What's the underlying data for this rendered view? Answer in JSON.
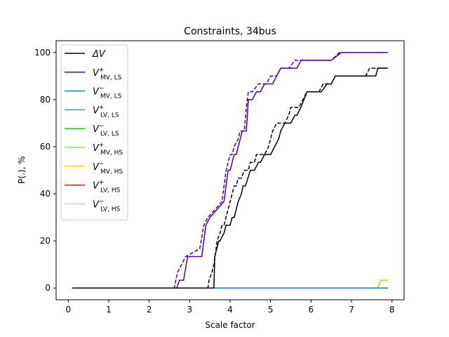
{
  "chart_data": {
    "type": "line",
    "title": "Constraints, 34bus",
    "xlabel": "Scale factor",
    "ylabel": "P(.), %",
    "xlim": [
      -0.3,
      8.3
    ],
    "ylim": [
      -5,
      105
    ],
    "xticks": [
      0,
      1,
      2,
      3,
      4,
      5,
      6,
      7,
      8
    ],
    "yticks": [
      0,
      20,
      40,
      60,
      80,
      100
    ],
    "legend_position": "upper left",
    "note": "solid and dashed variants are drawn per series",
    "series": [
      {
        "id": "dv",
        "color": "#000000",
        "legend": {
          "base": "ΔV",
          "sup": "",
          "sub": ""
        },
        "solid_x": [
          0.1,
          3.6,
          3.62,
          3.72,
          3.75,
          3.85,
          3.9,
          3.95,
          4.0,
          4.05,
          4.1,
          4.15,
          4.2,
          4.28,
          4.32,
          4.38,
          4.5,
          4.55,
          4.6,
          4.7,
          4.75,
          4.85,
          4.95,
          5.0,
          5.1,
          5.2,
          5.25,
          5.35,
          5.45,
          5.5,
          5.6,
          5.65,
          5.75,
          5.9,
          6.2,
          6.25,
          6.4,
          6.5,
          6.6,
          6.9,
          7.6,
          7.65,
          7.9
        ],
        "solid_y": [
          0,
          0,
          13.33,
          20,
          20,
          23.33,
          26.67,
          26.67,
          26.67,
          30,
          30,
          33.33,
          36.67,
          40,
          43.33,
          43.33,
          50,
          50,
          50,
          53.33,
          53.33,
          56.67,
          56.67,
          56.67,
          60,
          63.33,
          66.67,
          70,
          70,
          70,
          73.33,
          73.33,
          76.67,
          83.33,
          83.33,
          83.33,
          86.67,
          86.67,
          90,
          90,
          90,
          93.33,
          93.33
        ],
        "dashed_x": [
          0.1,
          3.45,
          3.48,
          3.55,
          3.6,
          3.68,
          3.75,
          3.8,
          3.85,
          3.9,
          4.0,
          4.05,
          4.1,
          4.15,
          4.2,
          4.28,
          4.35,
          4.45,
          4.5,
          4.6,
          4.65,
          4.75,
          4.85,
          4.95,
          5.0,
          5.05,
          5.15,
          5.25,
          5.35,
          5.45,
          5.5,
          5.6,
          5.7,
          5.8,
          5.9,
          6.2,
          6.3,
          6.5,
          6.6,
          7.35,
          7.45,
          7.5,
          7.9
        ],
        "dashed_y": [
          0,
          0,
          3.33,
          6.67,
          10,
          20,
          23.33,
          26.67,
          26.67,
          30,
          36.67,
          40,
          43.33,
          43.33,
          46.67,
          46.67,
          50,
          50,
          53.33,
          53.33,
          56.67,
          56.67,
          56.67,
          60,
          63.33,
          66.67,
          70,
          70,
          70,
          73.33,
          76.67,
          76.67,
          76.67,
          80,
          83.33,
          83.33,
          86.67,
          86.67,
          90,
          90,
          93.33,
          93.33,
          93.33
        ]
      },
      {
        "id": "mv_ls_plus",
        "color": "#4b0099",
        "legend": {
          "base": "V",
          "sup": "+",
          "sub": "MV, LS"
        },
        "solid_x": [
          0.1,
          2.68,
          2.75,
          2.85,
          2.95,
          3.3,
          3.4,
          3.5,
          3.85,
          3.95,
          4.0,
          4.1,
          4.15,
          4.25,
          4.3,
          4.4,
          4.45,
          4.55,
          4.65,
          4.75,
          4.85,
          5.05,
          5.15,
          5.25,
          5.55,
          5.65,
          5.75,
          6.4,
          6.5,
          6.75,
          7.9
        ],
        "solid_y": [
          0,
          0,
          3.33,
          3.33,
          13.33,
          13.33,
          26.67,
          30,
          36.67,
          50,
          50,
          56.67,
          56.67,
          63.33,
          66.67,
          66.67,
          80,
          80,
          83.33,
          83.33,
          86.67,
          86.67,
          90,
          93.33,
          93.33,
          93.33,
          96.67,
          96.67,
          96.67,
          100,
          100
        ],
        "dashed_x": [
          0.1,
          2.62,
          2.7,
          2.8,
          2.9,
          3.25,
          3.35,
          3.45,
          3.8,
          3.9,
          4.0,
          4.05,
          4.1,
          4.2,
          4.25,
          4.35,
          4.4,
          4.45,
          4.55,
          4.7,
          4.8,
          4.9,
          5.0,
          5.15,
          5.25,
          5.45,
          5.6,
          6.5,
          6.7,
          7.9
        ],
        "dashed_y": [
          0,
          0,
          6.67,
          10,
          13.33,
          16.67,
          26.67,
          30,
          36.67,
          50,
          56.67,
          56.67,
          60,
          63.33,
          66.67,
          66.67,
          76.67,
          83.33,
          83.33,
          86.67,
          86.67,
          86.67,
          90,
          90,
          93.33,
          93.33,
          96.67,
          96.67,
          100,
          100
        ]
      },
      {
        "id": "mv_ls_minus",
        "color": "#1f77b4",
        "legend": {
          "base": "V",
          "sup": "−",
          "sub": "MV, LS"
        },
        "solid_x": [
          0.1,
          7.9
        ],
        "solid_y": [
          0,
          0
        ],
        "dashed_x": [
          0.1,
          7.9
        ],
        "dashed_y": [
          0,
          0
        ]
      },
      {
        "id": "lv_ls_plus",
        "color": "#1aaa99",
        "legend": {
          "base": "V",
          "sup": "+",
          "sub": "LV, LS"
        },
        "solid_x": [
          0.1,
          7.9
        ],
        "solid_y": [
          0,
          0
        ],
        "dashed_x": [
          0.1,
          7.9
        ],
        "dashed_y": [
          0,
          0
        ]
      },
      {
        "id": "lv_ls_minus",
        "color": "#1ec01e",
        "legend": {
          "base": "V",
          "sup": "−",
          "sub": "LV, LS"
        },
        "solid_x": [
          0.1,
          7.9
        ],
        "solid_y": [
          0,
          0
        ],
        "dashed_x": [
          0.1,
          7.9
        ],
        "dashed_y": [
          0,
          0
        ]
      },
      {
        "id": "mv_hs_plus",
        "color": "#7fff00",
        "legend": {
          "base": "V",
          "sup": "+",
          "sub": "MV, HS"
        },
        "solid_x": [
          0.1,
          7.65,
          7.72,
          7.9
        ],
        "solid_y": [
          0,
          0,
          3.33,
          3.33
        ],
        "dashed_x": [
          0.1,
          7.55,
          7.62,
          7.9
        ],
        "dashed_y": [
          0,
          0,
          0,
          0
        ]
      },
      {
        "id": "mv_hs_minus",
        "color": "#ffcc00",
        "legend": {
          "base": "V",
          "sup": "−",
          "sub": "MV, HS"
        },
        "solid_x": [
          0.1,
          7.9
        ],
        "solid_y": [
          0,
          0
        ],
        "dashed_x": [
          0.1,
          7.9
        ],
        "dashed_y": [
          0,
          0
        ]
      },
      {
        "id": "lv_hs_plus",
        "color": "#dd1111",
        "legend": {
          "base": "V",
          "sup": "+",
          "sub": "LV, HS"
        },
        "solid_x": [
          0.1,
          7.9
        ],
        "solid_y": [
          0,
          0
        ],
        "dashed_x": [
          0.1,
          7.9
        ],
        "dashed_y": [
          0,
          0
        ]
      },
      {
        "id": "lv_hs_minus",
        "color": "#cccccc",
        "legend": {
          "base": "V",
          "sup": "−",
          "sub": "LV, HS"
        },
        "solid_x": [
          0.1,
          7.9
        ],
        "solid_y": [
          0,
          0
        ],
        "dashed_x": [
          0.1,
          7.9
        ],
        "dashed_y": [
          0,
          0
        ]
      }
    ]
  }
}
